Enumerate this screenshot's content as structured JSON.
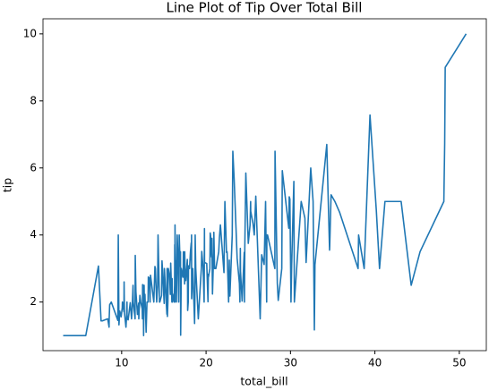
{
  "chart_data": {
    "type": "line",
    "title": "Line Plot of Tip Over Total Bill",
    "x_label": "total_bill",
    "y_label": "tip",
    "xlim": [
      0.68,
      53.2
    ],
    "ylim": [
      0.55,
      10.45
    ],
    "xticks": [
      10,
      20,
      30,
      40,
      50
    ],
    "yticks": [
      2,
      4,
      6,
      8,
      10
    ],
    "series": [
      {
        "color": "#1f77b4",
        "x": [
          3.07,
          5.75,
          7.25,
          7.56,
          7.74,
          8.35,
          8.51,
          8.52,
          8.58,
          8.77,
          9.55,
          9.6,
          9.68,
          9.78,
          9.94,
          10.07,
          10.09,
          10.27,
          10.29,
          10.33,
          10.34,
          10.51,
          10.59,
          10.63,
          10.65,
          10.77,
          11.02,
          11.17,
          11.24,
          11.35,
          11.38,
          11.59,
          11.61,
          11.69,
          11.87,
          12.02,
          12.03,
          12.16,
          12.26,
          12.43,
          12.46,
          12.48,
          12.54,
          12.6,
          12.66,
          12.69,
          12.74,
          12.76,
          12.9,
          13.0,
          13.03,
          13.13,
          13.16,
          13.27,
          13.28,
          13.37,
          13.39,
          13.42,
          13.81,
          13.94,
          14.0,
          14.07,
          14.15,
          14.26,
          14.31,
          14.48,
          14.52,
          14.73,
          14.78,
          14.83,
          15.01,
          15.04,
          15.06,
          15.36,
          15.38,
          15.42,
          15.48,
          15.53,
          15.69,
          15.77,
          15.81,
          15.95,
          15.98,
          16.0,
          16.04,
          16.21,
          16.27,
          16.29,
          16.31,
          16.32,
          16.4,
          16.43,
          16.45,
          16.47,
          16.49,
          16.58,
          16.66,
          16.76,
          16.82,
          16.93,
          16.97,
          16.99,
          17.07,
          17.26,
          17.29,
          17.31,
          17.46,
          17.47,
          17.51,
          17.59,
          17.78,
          17.81,
          17.82,
          17.89,
          17.92,
          18.04,
          18.15,
          18.24,
          18.26,
          18.28,
          18.29,
          18.35,
          18.43,
          18.64,
          18.69,
          18.71,
          18.78,
          19.08,
          19.44,
          19.49,
          19.65,
          19.77,
          19.81,
          19.82,
          20.08,
          20.23,
          20.27,
          20.29,
          20.45,
          20.49,
          20.53,
          20.65,
          20.69,
          20.76,
          20.9,
          20.92,
          21.01,
          21.16,
          21.5,
          21.58,
          21.7,
          22.12,
          22.23,
          22.42,
          22.49,
          22.67,
          22.75,
          22.76,
          22.82,
          23.1,
          23.17,
          23.33,
          23.68,
          23.95,
          24.01,
          24.06,
          24.08,
          24.27,
          24.52,
          24.55,
          24.59,
          24.71,
          25.0,
          25.21,
          25.28,
          25.29,
          25.56,
          25.71,
          25.89,
          26.41,
          26.59,
          26.86,
          26.88,
          27.05,
          27.18,
          27.2,
          27.28,
          28.15,
          28.17,
          28.44,
          28.55,
          28.97,
          29.03,
          29.8,
          29.85,
          29.93,
          30.06,
          30.14,
          30.4,
          30.46,
          31.27,
          31.71,
          31.85,
          32.4,
          32.68,
          32.83,
          32.9,
          34.3,
          34.63,
          34.65,
          34.81,
          35.26,
          35.83,
          38.01,
          38.07,
          38.73,
          39.42,
          40.17,
          40.55,
          41.19,
          43.11,
          44.3,
          45.35,
          48.17,
          48.27,
          48.33,
          50.81
        ],
        "values": [
          1.0,
          1.0,
          3.075,
          1.44,
          1.44,
          1.5,
          1.25,
          1.48,
          1.92,
          2.0,
          1.45,
          4.0,
          1.32,
          1.73,
          1.56,
          1.83,
          2.0,
          1.71,
          2.6,
          1.67,
          1.66,
          1.25,
          1.61,
          2.0,
          1.5,
          1.47,
          1.98,
          1.5,
          1.76,
          2.5,
          2.0,
          1.5,
          3.39,
          2.31,
          1.63,
          1.97,
          1.5,
          2.2,
          2.0,
          1.8,
          1.5,
          2.52,
          2.5,
          1.0,
          2.5,
          2.0,
          2.01,
          2.23,
          1.1,
          2.0,
          2.0,
          2.0,
          2.75,
          2.5,
          2.72,
          2.0,
          2.61,
          2.8,
          2.0,
          3.06,
          3.0,
          2.5,
          2.0,
          2.5,
          4.0,
          2.0,
          2.0,
          2.2,
          3.23,
          3.02,
          2.09,
          1.96,
          3.0,
          1.64,
          3.0,
          1.57,
          2.02,
          3.0,
          2.75,
          2.23,
          3.16,
          2.0,
          2.7,
          2.0,
          2.24,
          2.0,
          2.5,
          3.71,
          2.0,
          4.3,
          2.5,
          2.3,
          2.47,
          3.23,
          2.0,
          4.0,
          3.4,
          2.0,
          4.0,
          3.07,
          3.5,
          1.01,
          3.0,
          2.74,
          2.9,
          3.5,
          2.54,
          3.5,
          3.0,
          2.64,
          3.27,
          2.34,
          1.75,
          2.0,
          3.08,
          3.0,
          3.5,
          3.76,
          3.25,
          4.0,
          2.1,
          2.5,
          3.0,
          1.36,
          2.31,
          4.0,
          3.0,
          1.5,
          3.0,
          3.51,
          3.0,
          2.0,
          4.19,
          3.18,
          3.15,
          2.01,
          2.83,
          2.75,
          3.0,
          4.06,
          4.0,
          3.35,
          3.9,
          2.24,
          3.5,
          4.08,
          3.0,
          3.0,
          3.5,
          3.92,
          4.3,
          2.88,
          5.0,
          3.48,
          3.5,
          2.0,
          3.25,
          3.0,
          2.18,
          4.0,
          6.5,
          5.65,
          3.31,
          2.55,
          2.0,
          3.6,
          2.92,
          2.03,
          3.48,
          2.0,
          3.61,
          5.85,
          3.75,
          4.29,
          5.0,
          4.71,
          4.34,
          4.0,
          5.16,
          1.5,
          3.41,
          3.14,
          3.12,
          5.0,
          2.0,
          4.0,
          4.0,
          3.0,
          6.5,
          2.56,
          2.05,
          3.0,
          5.92,
          4.2,
          5.14,
          5.07,
          2.0,
          3.09,
          5.6,
          2.0,
          5.0,
          4.5,
          3.18,
          6.0,
          5.0,
          1.17,
          3.11,
          6.7,
          3.55,
          3.68,
          5.2,
          5.0,
          4.67,
          3.0,
          4.0,
          3.0,
          7.58,
          4.73,
          3.0,
          5.0,
          5.0,
          2.5,
          3.5,
          5.0,
          6.73,
          9.0,
          10.0
        ]
      }
    ]
  }
}
